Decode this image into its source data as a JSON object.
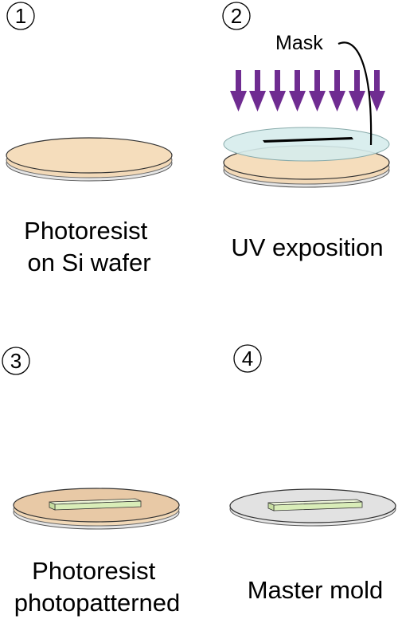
{
  "steps": [
    {
      "number": "1",
      "caption_lines": [
        "Photoresist",
        "on Si wafer"
      ]
    },
    {
      "number": "2",
      "caption_lines": [
        "UV exposition"
      ],
      "callout": "Mask"
    },
    {
      "number": "3",
      "caption_lines": [
        "Photoresist",
        "photopatterned"
      ]
    },
    {
      "number": "4",
      "caption_lines": [
        "Master mold"
      ]
    }
  ],
  "colors": {
    "photoresist": "#F2D9B8",
    "photoresist_top": "#EED3AD",
    "photoresist_edge": "#E9C9A5",
    "wafer": "#E6E6E6",
    "mask": "#D6ECEC",
    "uv_arrows": "#6F2C91",
    "pattern": "#D9EDB8"
  }
}
